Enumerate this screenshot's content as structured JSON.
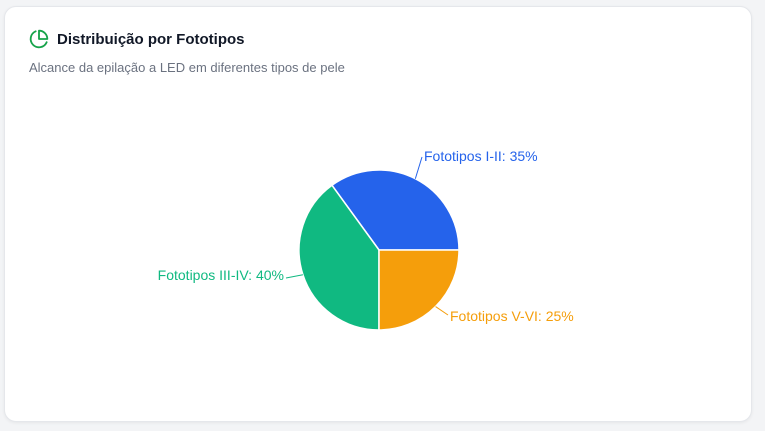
{
  "card": {
    "title": "Distribuição por Fototipos",
    "subtitle": "Alcance da epilação a LED em diferentes tipos de pele",
    "icon": "pie-chart-icon",
    "accent": "#16a34a"
  },
  "chart_data": {
    "type": "pie",
    "title": "Distribuição por Fototipos",
    "subtitle": "Alcance da epilação a LED em diferentes tipos de pele",
    "slices": [
      {
        "name": "Fototipos I-II",
        "value": 35,
        "label": "Fototipos I-II: 35%",
        "color": "#2563eb"
      },
      {
        "name": "Fototipos III-IV",
        "value": 40,
        "label": "Fototipos III-IV: 40%",
        "color": "#10b981"
      },
      {
        "name": "Fototipos V-VI",
        "value": 25,
        "label": "Fototipos V-VI: 25%",
        "color": "#f59e0b"
      }
    ],
    "legend": "none"
  }
}
